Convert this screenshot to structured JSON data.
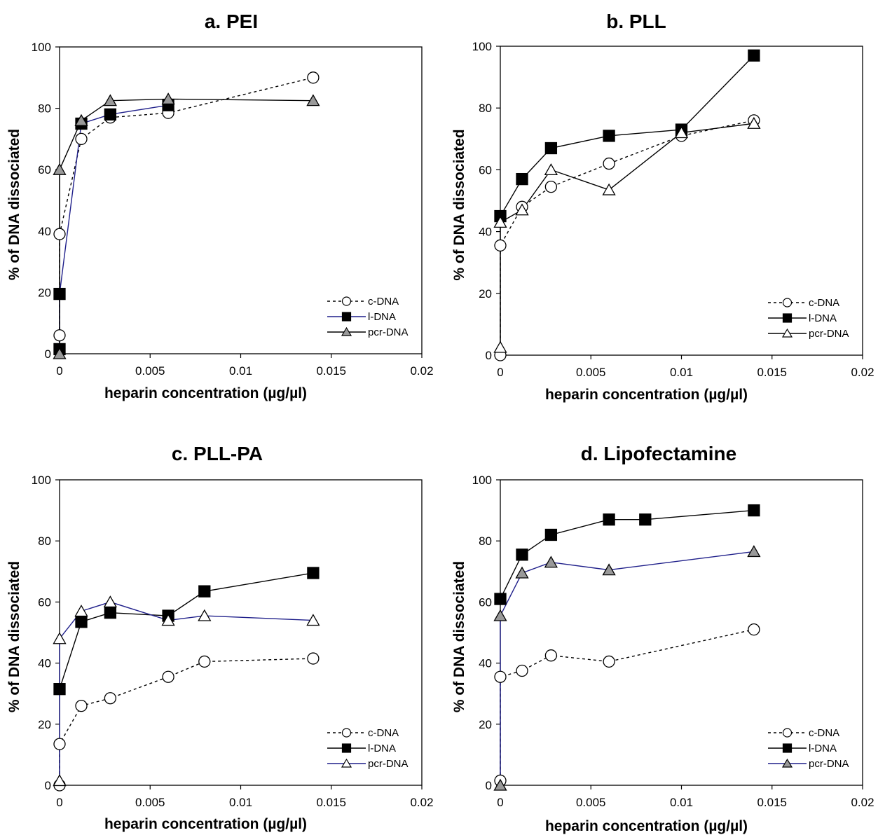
{
  "axis_labels": {
    "x": "heparin concentration (µg/µl)",
    "y": "% of DNA dissociated"
  },
  "colors": {
    "navy": "#1f1f8a",
    "black": "#000000",
    "gray": "#999999",
    "white": "#ffffff"
  },
  "chart_data": [
    {
      "type": "line",
      "title": "a. PEI",
      "xlabel": "heparin concentration (µg/µl)",
      "ylabel": "% of DNA dissociated",
      "xlim": [
        0,
        0.02
      ],
      "ylim": [
        0,
        100
      ],
      "xticks": [
        "0",
        "0.005",
        "0.01",
        "0.015",
        "0.02"
      ],
      "yticks": [
        "0",
        "20",
        "40",
        "60",
        "80",
        "100"
      ],
      "legend_position": "bottom-right",
      "series": [
        {
          "name": "c-DNA",
          "marker": "circle",
          "fill": "#ffffff",
          "line": "#000000",
          "dashed": true,
          "x": [
            0,
            0,
            0.0012,
            0.0028,
            0.006,
            0.014
          ],
          "y": [
            6,
            39,
            70,
            77,
            78.5,
            90
          ]
        },
        {
          "name": "l-DNA",
          "marker": "square",
          "fill": "#000000",
          "line": "#1f1f8a",
          "dashed": false,
          "x": [
            0,
            0,
            0.0012,
            0.0028,
            0.006
          ],
          "y": [
            1.5,
            19.5,
            75,
            78,
            81
          ]
        },
        {
          "name": "pcr-DNA",
          "marker": "triangle",
          "fill": "#999999",
          "line": "#000000",
          "dashed": false,
          "x": [
            0,
            0,
            0.0012,
            0.0028,
            0.006,
            0.014
          ],
          "y": [
            0,
            60,
            76,
            82.5,
            83,
            82.5
          ]
        }
      ]
    },
    {
      "type": "line",
      "title": "b. PLL",
      "xlabel": "heparin concentration (µg/µl)",
      "ylabel": "% of DNA dissociated",
      "xlim": [
        0,
        0.02
      ],
      "ylim": [
        0,
        100
      ],
      "xticks": [
        "0",
        "0.005",
        "0.01",
        "0.015",
        "0.02"
      ],
      "yticks": [
        "0",
        "20",
        "40",
        "60",
        "80",
        "100"
      ],
      "legend_position": "bottom-right",
      "series": [
        {
          "name": "c-DNA",
          "marker": "circle",
          "fill": "#ffffff",
          "line": "#000000",
          "dashed": true,
          "x": [
            0,
            0,
            0.0012,
            0.0028,
            0.006,
            0.01,
            0.014
          ],
          "y": [
            0,
            35.5,
            48,
            54.5,
            62,
            71,
            76
          ]
        },
        {
          "name": "l-DNA",
          "marker": "square",
          "fill": "#000000",
          "line": "#000000",
          "dashed": false,
          "x": [
            0,
            0.0012,
            0.0028,
            0.006,
            0.01,
            0.014
          ],
          "y": [
            45,
            57,
            67,
            71,
            73,
            97
          ]
        },
        {
          "name": "pcr-DNA",
          "marker": "triangle",
          "fill": "#ffffff",
          "line": "#000000",
          "dashed": false,
          "x": [
            0,
            0,
            0.0012,
            0.0028,
            0.006,
            0.01,
            0.014
          ],
          "y": [
            2.5,
            43,
            47,
            60,
            53.5,
            72,
            75
          ]
        }
      ]
    },
    {
      "type": "line",
      "title": "c. PLL-PA",
      "xlabel": "heparin concentration (µg/µl)",
      "ylabel": "% of DNA dissociated",
      "xlim": [
        0,
        0.02
      ],
      "ylim": [
        0,
        100
      ],
      "xticks": [
        "0",
        "0.005",
        "0.01",
        "0.015",
        "0.02"
      ],
      "yticks": [
        "0",
        "20",
        "40",
        "60",
        "80",
        "100"
      ],
      "legend_position": "bottom-right",
      "series": [
        {
          "name": "c-DNA",
          "marker": "circle",
          "fill": "#ffffff",
          "line": "#000000",
          "dashed": true,
          "x": [
            0,
            0,
            0.0012,
            0.0028,
            0.006,
            0.008,
            0.014
          ],
          "y": [
            0,
            13.5,
            26,
            28.5,
            35.5,
            40.5,
            41.5
          ]
        },
        {
          "name": "l-DNA",
          "marker": "square",
          "fill": "#000000",
          "line": "#000000",
          "dashed": false,
          "x": [
            0,
            0.0012,
            0.0028,
            0.006,
            0.008,
            0.014
          ],
          "y": [
            31.5,
            53.5,
            56.5,
            55.5,
            63.5,
            69.5
          ]
        },
        {
          "name": "pcr-DNA",
          "marker": "triangle",
          "fill": "#ffffff",
          "line": "#1f1f8a",
          "dashed": false,
          "x": [
            0,
            0,
            0.0012,
            0.0028,
            0.006,
            0.008,
            0.014
          ],
          "y": [
            1.5,
            48,
            57,
            60,
            54,
            55.5,
            54
          ]
        }
      ]
    },
    {
      "type": "line",
      "title": "d. Lipofectamine",
      "xlabel": "heparin concentration (µg/µl)",
      "ylabel": "% of DNA dissociated",
      "xlim": [
        0,
        0.02
      ],
      "ylim": [
        0,
        100
      ],
      "xticks": [
        "0",
        "0.005",
        "0.01",
        "0.015",
        "0.02"
      ],
      "yticks": [
        "0",
        "20",
        "40",
        "60",
        "80",
        "100"
      ],
      "legend_position": "bottom-right",
      "series": [
        {
          "name": "c-DNA",
          "marker": "circle",
          "fill": "#ffffff",
          "line": "#000000",
          "dashed": true,
          "x": [
            0,
            0,
            0.0012,
            0.0028,
            0.006,
            0.014
          ],
          "y": [
            1.5,
            35.5,
            37.5,
            42.5,
            40.5,
            51
          ]
        },
        {
          "name": "l-DNA",
          "marker": "square",
          "fill": "#000000",
          "line": "#000000",
          "dashed": false,
          "x": [
            0,
            0.0012,
            0.0028,
            0.006,
            0.008,
            0.014
          ],
          "y": [
            61,
            75.5,
            82,
            87,
            87,
            90
          ]
        },
        {
          "name": "pcr-DNA",
          "marker": "triangle",
          "fill": "#999999",
          "line": "#1f1f8a",
          "dashed": false,
          "x": [
            0,
            0,
            0.0012,
            0.0028,
            0.006,
            0.014
          ],
          "y": [
            0,
            55.5,
            69.5,
            73,
            70.5,
            76.5
          ]
        }
      ]
    }
  ]
}
